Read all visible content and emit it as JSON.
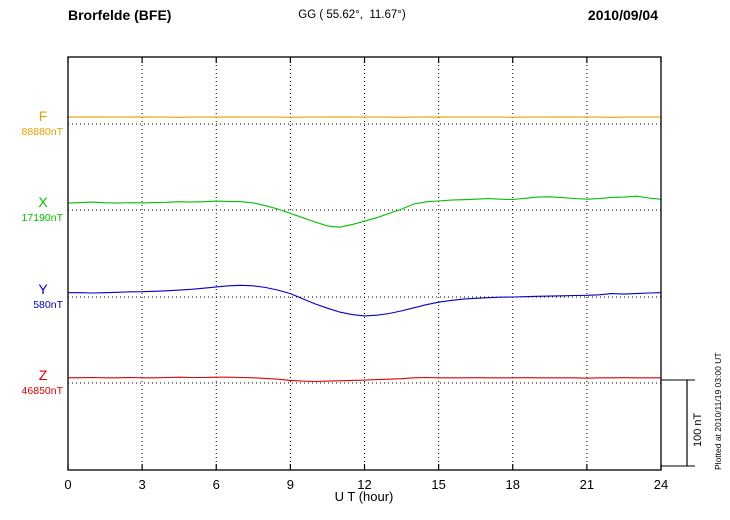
{
  "header": {
    "station": "Brorfelde (BFE)",
    "coordinates": "GG ( 55.62°,  11.67°)",
    "date": "2010/09/04"
  },
  "axis": {
    "label": "U T (hour)",
    "ticks": [
      0,
      3,
      6,
      9,
      12,
      15,
      18,
      21,
      24
    ]
  },
  "footer": {
    "plotted_note": "Plotted at 2010/11/19 03:00 UT"
  },
  "chart_data": {
    "type": "line",
    "title": "Brorfelde (BFE) magnetogram",
    "subtitle": "GG ( 55.62°,  11.67°)",
    "date": "2010/09/04",
    "xlabel": "U T (hour)",
    "x_range": [
      0,
      24
    ],
    "x_ticks": [
      0,
      3,
      6,
      9,
      12,
      15,
      18,
      21,
      24
    ],
    "x_start": 0,
    "x_step": 0.5,
    "grid": "vertical dotted at 3-hour intervals, dotted horizontal reference line per component",
    "units": "nT, deviation from each component reference value",
    "scale_bar": {
      "label": "100 nT",
      "nT": 100
    },
    "series": [
      {
        "id": "F",
        "name": "F",
        "reference": "88880nT",
        "color": "#ef9f00",
        "values": [
          8,
          8,
          8.2,
          8,
          8,
          8,
          8.2,
          8,
          8,
          7.8,
          8,
          8,
          8,
          8.2,
          8,
          8,
          8,
          8,
          7.8,
          8,
          8,
          8,
          8.2,
          8,
          8,
          8,
          8,
          7.8,
          8,
          8,
          8.2,
          8,
          8,
          8,
          8,
          8,
          7.8,
          8,
          8,
          8,
          8.2,
          8,
          8,
          8,
          7.8,
          8,
          8,
          8,
          8
        ]
      },
      {
        "id": "X",
        "name": "X",
        "reference": "17190nT",
        "color": "#00c000",
        "values": [
          8,
          8.6,
          9.2,
          8.4,
          8.0,
          8.5,
          8.2,
          8.6,
          9.0,
          9.6,
          9.2,
          9.6,
          10.4,
          10.0,
          9.6,
          8.2,
          5.0,
          1.0,
          -4.0,
          -9.0,
          -14.0,
          -18.5,
          -20.0,
          -17.0,
          -13.0,
          -9.0,
          -4.0,
          1.0,
          7.0,
          9.5,
          10.5,
          11.5,
          12.0,
          12.6,
          13.2,
          12.6,
          12.2,
          13.6,
          15.0,
          15.4,
          14.4,
          13.4,
          12.6,
          13.2,
          14.6,
          15.0,
          16.0,
          14.0,
          12.5
        ]
      },
      {
        "id": "Y",
        "name": "Y",
        "reference": "580nT",
        "color": "#0000cc",
        "values": [
          5.0,
          5.0,
          4.6,
          5.0,
          5.5,
          6.0,
          6.2,
          6.6,
          7.2,
          8.0,
          9.0,
          10.2,
          11.8,
          13.0,
          13.6,
          13.0,
          11.0,
          8.0,
          4.0,
          -2.0,
          -8.0,
          -13.0,
          -17.5,
          -20.5,
          -22.0,
          -21.2,
          -19.2,
          -16.2,
          -12.5,
          -9.0,
          -6.0,
          -4.0,
          -2.5,
          -1.5,
          -0.8,
          -0.2,
          0.0,
          0.4,
          0.8,
          1.0,
          1.4,
          1.8,
          2.0,
          2.6,
          4.0,
          3.4,
          4.0,
          4.6,
          5.0
        ]
      },
      {
        "id": "Z",
        "name": "Z",
        "reference": "46850nT",
        "color": "#e00000",
        "values": [
          6.0,
          6.2,
          6.4,
          6.0,
          6.0,
          6.4,
          6.0,
          6.0,
          6.4,
          6.8,
          6.4,
          6.4,
          6.8,
          6.8,
          6.4,
          6.0,
          5.4,
          4.4,
          3.0,
          2.2,
          1.8,
          2.2,
          2.6,
          3.0,
          3.4,
          4.0,
          4.4,
          5.0,
          6.0,
          6.4,
          6.0,
          6.0,
          6.0,
          6.2,
          6.0,
          6.0,
          6.0,
          6.2,
          6.0,
          6.0,
          6.0,
          6.0,
          5.6,
          6.0,
          6.0,
          6.2,
          6.0,
          6.0,
          6.0
        ]
      }
    ]
  }
}
